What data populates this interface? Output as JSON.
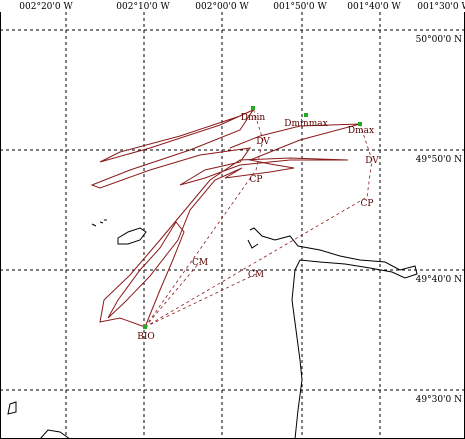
{
  "longitude_labels": [
    "002°20'0 W",
    "002°10'0 W",
    "002°00'0 W",
    "001°50'0 W",
    "001°40'0 W",
    "001°30'0 W"
  ],
  "latitude_labels": [
    "50°00'0 N",
    "49°50'0 N",
    "49°40'0 N",
    "49°30'0 N"
  ],
  "points": [
    {
      "label": "Dmin"
    },
    {
      "label": "Dminmax"
    },
    {
      "label": "Dmax"
    },
    {
      "label": "BIO"
    }
  ],
  "path_labels": [
    "DV",
    "DV",
    "CP",
    "CP",
    "CM",
    "CM"
  ]
}
